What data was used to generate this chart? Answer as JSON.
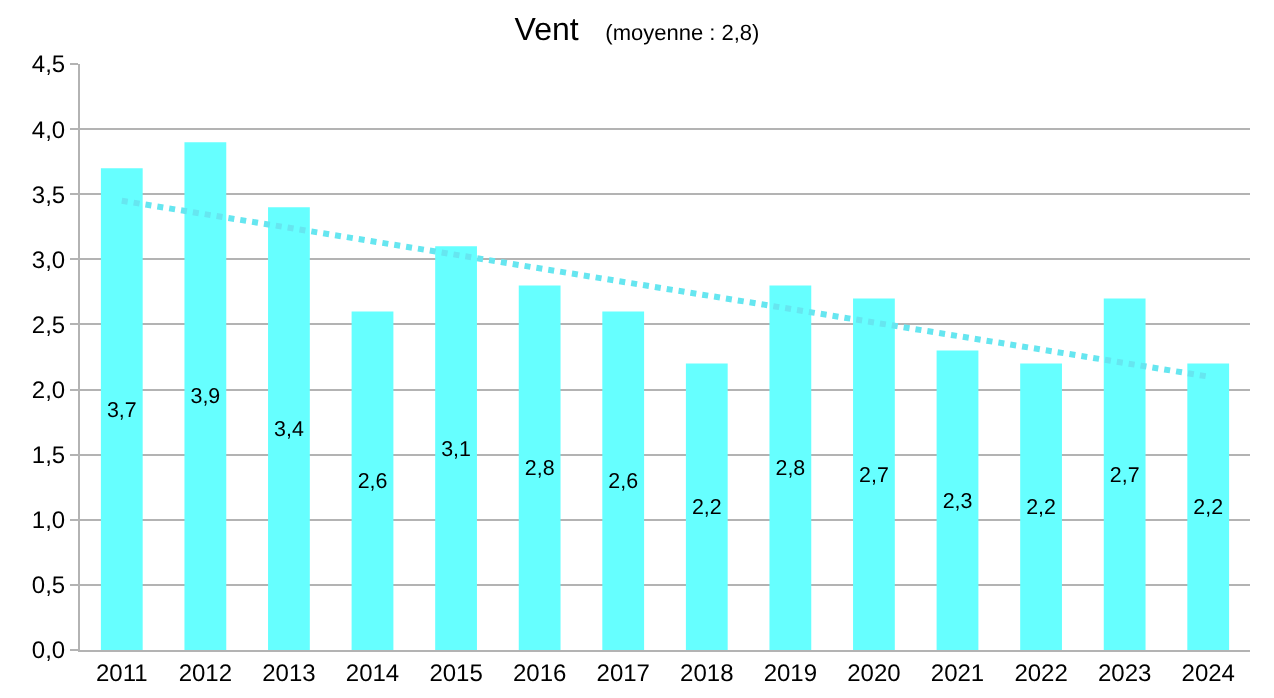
{
  "chart_data": {
    "type": "bar",
    "title": "Vent",
    "subtitle": "(moyenne : 2,8)",
    "categories": [
      "2011",
      "2012",
      "2013",
      "2014",
      "2015",
      "2016",
      "2017",
      "2018",
      "2019",
      "2020",
      "2021",
      "2022",
      "2023",
      "2024"
    ],
    "series": [
      {
        "color": "#66ffff",
        "values": [
          3.7,
          3.9,
          3.4,
          2.6,
          3.1,
          2.8,
          2.6,
          2.2,
          2.8,
          2.7,
          2.3,
          2.2,
          2.7,
          2.2
        ],
        "value_labels": [
          "3,7",
          "3,9",
          "3,4",
          "2,6",
          "3,1",
          "2,8",
          "2,6",
          "2,2",
          "2,8",
          "2,7",
          "2,3",
          "2,2",
          "2,7",
          "2,2"
        ]
      },
      {
        "type": "line",
        "color": "#66e6f0",
        "line_style": "dotted",
        "marker": "none",
        "values": [
          3.45,
          null,
          null,
          null,
          null,
          null,
          null,
          null,
          null,
          null,
          null,
          null,
          null,
          2.1
        ]
      }
    ],
    "ylim": [
      0,
      4.5
    ],
    "yticks": [
      {
        "value": 0,
        "label": "0,0"
      },
      {
        "value": 0.5,
        "label": "0,5"
      },
      {
        "value": 1,
        "label": "1,0"
      },
      {
        "value": 1.5,
        "label": "1,5"
      },
      {
        "value": 2,
        "label": "2,0"
      },
      {
        "value": 2.5,
        "label": "2,5"
      },
      {
        "value": 3,
        "label": "3,0"
      },
      {
        "value": 3.5,
        "label": "3,5"
      },
      {
        "value": 4,
        "label": "4,0"
      },
      {
        "value": 4.5,
        "label": "4,5"
      }
    ],
    "grid": "y"
  }
}
